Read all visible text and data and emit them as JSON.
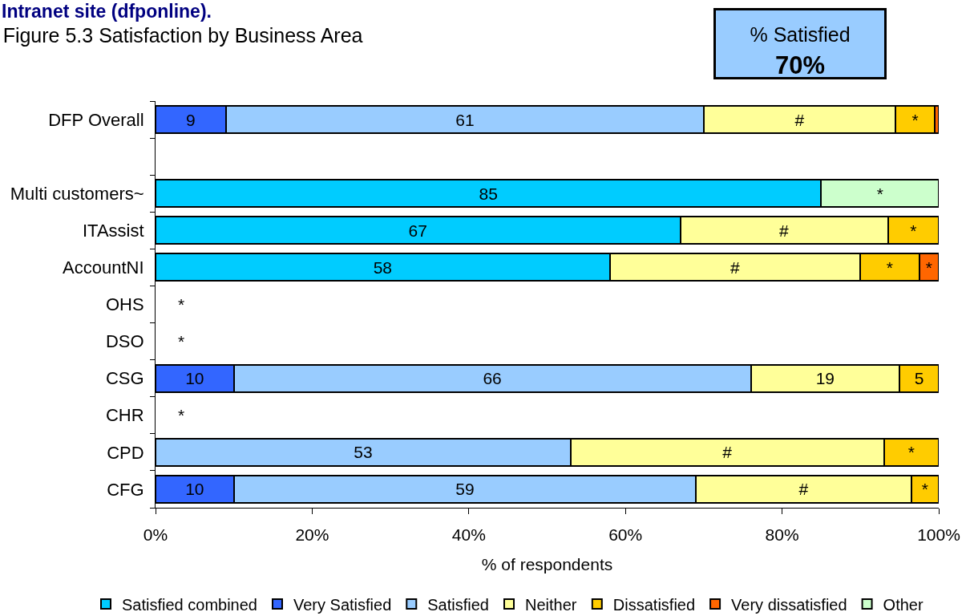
{
  "chart_data": {
    "type": "bar",
    "orientation": "horizontal",
    "stacked": true,
    "title": "Figure 5.3 Satisfaction by Business Area",
    "xlabel": "% of respondents",
    "annotations": [
      "Intranet site (dfponline).",
      "% Satisfied",
      "70%",
      "*",
      "*",
      "*"
    ],
    "categories": [
      "DFP Overall",
      null,
      "Multi customers~",
      "ITAssist",
      "AccountNI",
      "OHS",
      "DSO",
      "CSG",
      "CHR",
      "CPD",
      "CFG"
    ],
    "series": [
      {
        "name": "Satisfied combined",
        "color": "#00ccff",
        "values": [
          null,
          null,
          85,
          67,
          58,
          null,
          null,
          null,
          null,
          null,
          null
        ],
        "value_labels": [
          null,
          null,
          "85",
          "67",
          "58",
          null,
          null,
          null,
          null,
          null,
          null
        ]
      },
      {
        "name": "Very Satisfied",
        "color": "#3366ff",
        "values": [
          9,
          null,
          null,
          null,
          null,
          null,
          null,
          10,
          null,
          null,
          10
        ],
        "value_labels": [
          "9",
          null,
          null,
          null,
          null,
          null,
          null,
          "10",
          null,
          null,
          "10"
        ]
      },
      {
        "name": "Satisfied",
        "color": "#99ccff",
        "values": [
          61,
          null,
          null,
          null,
          null,
          null,
          null,
          66,
          null,
          53,
          59
        ],
        "value_labels": [
          "61",
          null,
          null,
          null,
          null,
          null,
          null,
          "66",
          null,
          "53",
          "59"
        ]
      },
      {
        "name": "Neither",
        "color": "#ffff99",
        "values": [
          24.5,
          null,
          null,
          26.5,
          32,
          null,
          null,
          19,
          null,
          40,
          27.5
        ],
        "value_labels": [
          "#",
          null,
          null,
          "#",
          "#",
          null,
          null,
          "19",
          null,
          "#",
          "#"
        ]
      },
      {
        "name": "Dissatisfied",
        "color": "#ffcc00",
        "values": [
          5,
          null,
          null,
          6.5,
          7.5,
          null,
          null,
          5,
          null,
          7,
          3.5
        ],
        "value_labels": [
          "*",
          null,
          null,
          "*",
          "*",
          null,
          null,
          "5",
          null,
          "*",
          "*"
        ]
      },
      {
        "name": "Very dissatisfied",
        "color": "#ff6600",
        "values": [
          0.5,
          null,
          null,
          null,
          2.5,
          null,
          null,
          null,
          null,
          null,
          null
        ],
        "value_labels": [
          null,
          null,
          null,
          null,
          "*",
          null,
          null,
          null,
          null,
          null,
          null
        ]
      },
      {
        "name": "Other",
        "color": "#ccffcc",
        "values": [
          null,
          null,
          15,
          null,
          null,
          null,
          null,
          null,
          null,
          null,
          null
        ],
        "value_labels": [
          null,
          null,
          "*",
          null,
          null,
          null,
          null,
          null,
          null,
          null,
          null
        ]
      }
    ],
    "xlim": [
      0,
      100
    ],
    "xticks": [
      {
        "value": 0,
        "label": "0%"
      },
      {
        "value": 20,
        "label": "20%"
      },
      {
        "value": 40,
        "label": "40%"
      },
      {
        "value": 60,
        "label": "60%"
      },
      {
        "value": 80,
        "label": "80%"
      },
      {
        "value": 100,
        "label": "100%"
      }
    ],
    "grid": false,
    "legend": "bottom"
  }
}
